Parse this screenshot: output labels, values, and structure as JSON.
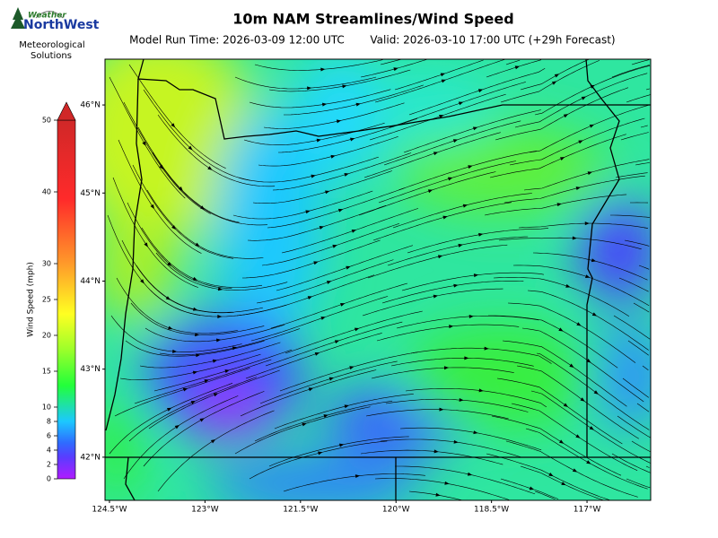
{
  "header": {
    "logo": {
      "top": "Weather",
      "brand": "NorthWest",
      "tagline": [
        "Meteorological",
        "Solutions"
      ]
    },
    "title": "10m NAM Streamlines/Wind Speed",
    "model_run": "Model Run Time: 2026-03-09 12:00 UTC",
    "valid": "Valid: 2026-03-10 17:00 UTC  (+29h Forecast)"
  },
  "colorbar": {
    "label": "Wind Speed (mph)",
    "range": [
      0,
      50
    ],
    "ticks": [
      0,
      2,
      4,
      6,
      8,
      10,
      15,
      20,
      25,
      30,
      40,
      50
    ]
  },
  "map": {
    "lat_range": [
      41.51,
      46.52
    ],
    "lon_range": [
      -124.57,
      -116.0
    ],
    "lat_ticks": [
      {
        "value": 46,
        "label": "46°N"
      },
      {
        "value": 45,
        "label": "45°N"
      },
      {
        "value": 44,
        "label": "44°N"
      },
      {
        "value": 43,
        "label": "43°N"
      },
      {
        "value": 42,
        "label": "42°N"
      }
    ],
    "lon_ticks": [
      {
        "value": -124.5,
        "label": "124.5°W"
      },
      {
        "value": -123,
        "label": "123°W"
      },
      {
        "value": -121.5,
        "label": "121.5°W"
      },
      {
        "value": -120,
        "label": "120°W"
      },
      {
        "value": -118.5,
        "label": "118.5°W"
      },
      {
        "value": -117,
        "label": "117°W"
      }
    ]
  }
}
